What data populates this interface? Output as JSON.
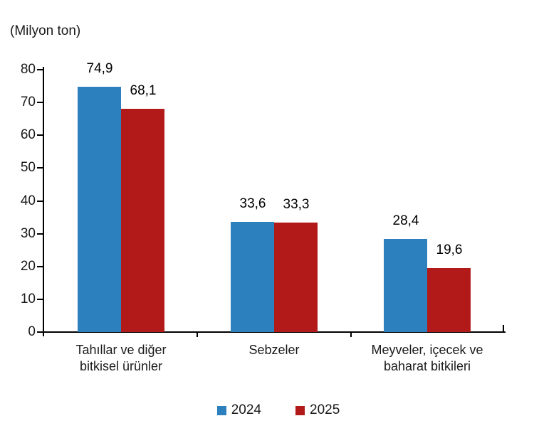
{
  "title": "(Milyon ton)",
  "colors": {
    "series_2024": "#2C80BE",
    "series_2025": "#B11A18",
    "axis": "#000000",
    "text": "#1a1a1a"
  },
  "legend": {
    "items": [
      {
        "label": "2024",
        "color": "#2C80BE"
      },
      {
        "label": "2025",
        "color": "#B11A18"
      }
    ]
  },
  "chart_data": {
    "type": "bar",
    "title": "(Milyon ton)",
    "ylabel": "(Milyon ton)",
    "xlabel": "",
    "categories": [
      "Tahıllar ve diğer bitkisel ürünler",
      "Sebzeler",
      "Meyveler, içecek ve baharat bitkileri"
    ],
    "category_lines": [
      [
        "Tahıllar ve diğer",
        "bitkisel ürünler"
      ],
      [
        "Sebzeler"
      ],
      [
        "Meyveler, içecek ve",
        "baharat bitkileri"
      ]
    ],
    "series": [
      {
        "name": "2024",
        "color": "#2C80BE",
        "values": [
          74.9,
          33.6,
          28.4
        ],
        "labels": [
          "74,9",
          "33,6",
          "28,4"
        ]
      },
      {
        "name": "2025",
        "color": "#B11A18",
        "values": [
          68.1,
          33.3,
          19.6
        ],
        "labels": [
          "68,1",
          "33,3",
          "19,6"
        ]
      }
    ],
    "ylim": [
      0,
      80
    ],
    "yticks": [
      0,
      10,
      20,
      30,
      40,
      50,
      60,
      70,
      80
    ],
    "grid": false,
    "legend_position": "bottom"
  }
}
